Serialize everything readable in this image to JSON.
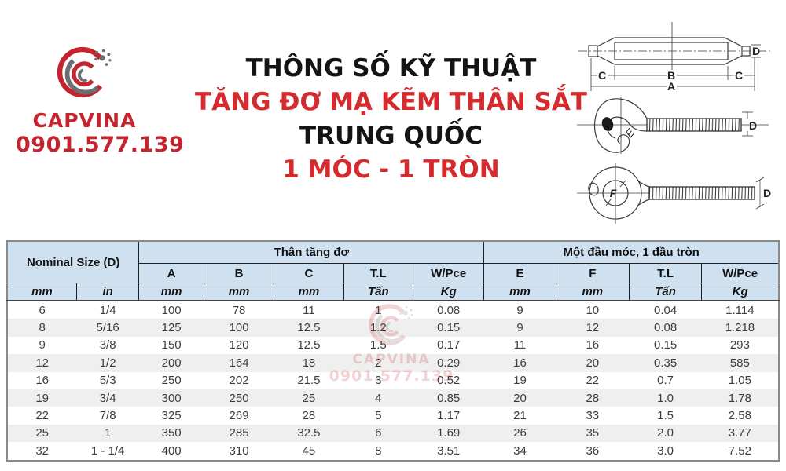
{
  "branding": {
    "name": "CAPVINA",
    "phone": "0901.577.139",
    "brand_red": "#c4242e",
    "brand_gray": "#6d6e70"
  },
  "title": {
    "line1": "THÔNG SỐ KỸ THUẬT",
    "line2": "TĂNG ĐƠ MẠ KẼM THÂN SẮT",
    "line3": "TRUNG QUỐC",
    "line4": "1 MÓC - 1 TRÒN",
    "black": "#141414",
    "red": "#d32b2e"
  },
  "diagram": {
    "body": {
      "a": "A",
      "b": "B",
      "c1": "C",
      "c2": "C",
      "d": "D"
    },
    "hook": {
      "e": "E",
      "d": "D"
    },
    "eye": {
      "f": "F",
      "d": "D"
    }
  },
  "table": {
    "header": {
      "nominal": "Nominal Size (D)",
      "group1": "Thân tăng đơ",
      "group2": "Một đầu móc, 1 đầu tròn",
      "cols": [
        "A",
        "B",
        "C",
        "T.L",
        "W/Pce",
        "E",
        "F",
        "T.L",
        "W/Pce"
      ],
      "units": [
        "mm",
        "in",
        "mm",
        "mm",
        "mm",
        "Tấn",
        "Kg",
        "mm",
        "mm",
        "Tấn",
        "Kg"
      ]
    },
    "rows": [
      [
        "6",
        "1/4",
        "100",
        "78",
        "11",
        "1",
        "0.08",
        "9",
        "10",
        "0.04",
        "1.114"
      ],
      [
        "8",
        "5/16",
        "125",
        "100",
        "12.5",
        "1.2",
        "0.15",
        "9",
        "12",
        "0.08",
        "1.218"
      ],
      [
        "9",
        "3/8",
        "150",
        "120",
        "12.5",
        "1.5",
        "0.17",
        "11",
        "16",
        "0.15",
        "293"
      ],
      [
        "12",
        "1/2",
        "200",
        "164",
        "18",
        "2",
        "0.29",
        "16",
        "20",
        "0.35",
        "585"
      ],
      [
        "16",
        "5/3",
        "250",
        "202",
        "21.5",
        "3",
        "0.52",
        "19",
        "22",
        "0.7",
        "1.05"
      ],
      [
        "19",
        "3/4",
        "300",
        "250",
        "25",
        "4",
        "0.85",
        "20",
        "28",
        "1.0",
        "1.78"
      ],
      [
        "22",
        "7/8",
        "325",
        "269",
        "28",
        "5",
        "1.17",
        "21",
        "33",
        "1.5",
        "2.58"
      ],
      [
        "25",
        "1",
        "350",
        "285",
        "32.5",
        "6",
        "1.69",
        "26",
        "35",
        "2.0",
        "3.77"
      ],
      [
        "32",
        "1 - 1/4",
        "400",
        "310",
        "45",
        "8",
        "3.51",
        "34",
        "36",
        "3.0",
        "7.52"
      ]
    ],
    "colors": {
      "header_bg": "#cfe1f1",
      "row_alt": "#efefef",
      "border": "#8a8a8a",
      "text": "#3c3c3c"
    }
  },
  "watermark": {
    "name": "CAPVINA",
    "phone": "0901.577.139"
  }
}
